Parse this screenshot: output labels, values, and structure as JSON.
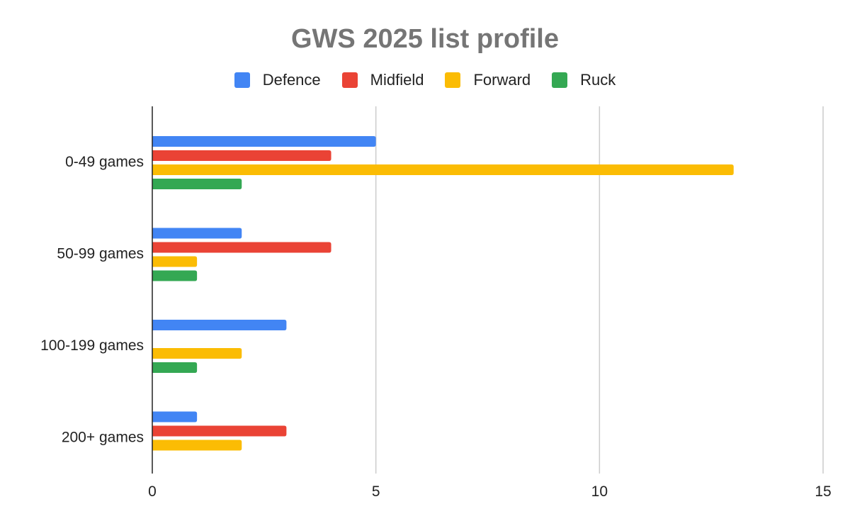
{
  "chart_data": {
    "type": "bar",
    "orientation": "horizontal",
    "title": "GWS 2025 list profile",
    "xlabel": "",
    "ylabel": "",
    "categories": [
      "0-49 games",
      "50-99 games",
      "100-199 games",
      "200+ games"
    ],
    "series": [
      {
        "name": "Defence",
        "color": "#4285f4",
        "values": [
          5,
          2,
          3,
          1
        ]
      },
      {
        "name": "Midfield",
        "color": "#ea4335",
        "values": [
          4,
          4,
          0,
          3
        ]
      },
      {
        "name": "Forward",
        "color": "#fbbc04",
        "values": [
          13,
          1,
          2,
          2
        ]
      },
      {
        "name": "Ruck",
        "color": "#34a853",
        "values": [
          2,
          1,
          1,
          0
        ]
      }
    ],
    "xlim": [
      0,
      15
    ],
    "xticks": [
      0,
      5,
      10,
      15
    ],
    "grid": "vertical",
    "legend_position": "top"
  }
}
